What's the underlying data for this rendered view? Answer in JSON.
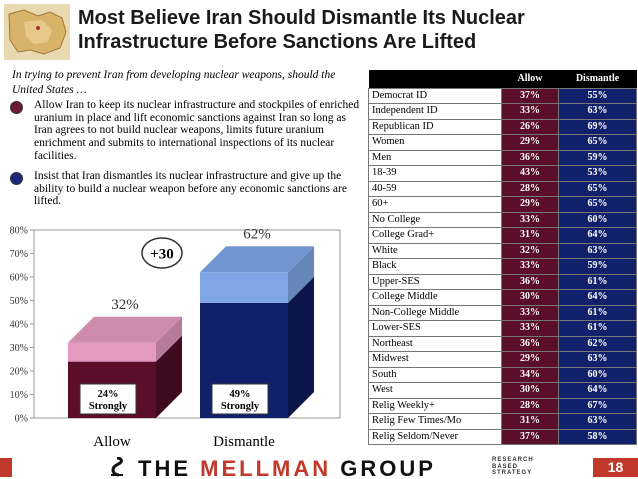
{
  "header": {
    "title_line1": "Most Believe Iran Should Dismantle Its Nuclear",
    "title_line2": "Infrastructure Before Sanctions Are Lifted"
  },
  "question": {
    "intro": "In trying to prevent Iran from developing nuclear weapons, should the United States …",
    "options": [
      {
        "text": "Allow Iran to keep its nuclear infrastructure and stockpiles of enriched uranium in place and lift economic sanctions against Iran so long as Iran agrees to not build nuclear weapons, limits future uranium enrichment and submits to international inspections of its nuclear facilities.",
        "color": "#6a1a35"
      },
      {
        "text": "Insist that Iran dismantles its nuclear infrastructure and give up the ability to build a nuclear weapon before any economic sanctions are lifted.",
        "color": "#1a2a7a"
      }
    ]
  },
  "chart_data": {
    "type": "bar",
    "categories": [
      "Allow",
      "Dismantle"
    ],
    "total_labels": [
      "32%",
      "62%"
    ],
    "totals": [
      32,
      62
    ],
    "strongly": [
      24,
      49
    ],
    "strongly_labels": [
      "24%\nStrongly",
      "49%\nStrongly"
    ],
    "strongly_line1": [
      "24%",
      "49%"
    ],
    "strongly_line2": [
      "Strongly",
      "Strongly"
    ],
    "difference_label": "+30",
    "ylim": [
      0,
      80
    ],
    "yticks": [
      "0%",
      "10%",
      "20%",
      "30%",
      "40%",
      "50%",
      "60%",
      "70%",
      "80%"
    ],
    "colors": {
      "allow_strong": "#5a0e2a",
      "allow_soft": "#e49ac0",
      "dismantle_strong": "#11206b",
      "dismantle_soft": "#7fa6e6"
    }
  },
  "table": {
    "headers": [
      "",
      "Allow",
      "Dismantle"
    ],
    "rows": [
      {
        "label": "Democrat ID",
        "allow": "37%",
        "dismantle": "55%"
      },
      {
        "label": "Independent ID",
        "allow": "33%",
        "dismantle": "63%"
      },
      {
        "label": "Republican ID",
        "allow": "26%",
        "dismantle": "69%"
      },
      {
        "label": "Women",
        "allow": "29%",
        "dismantle": "65%"
      },
      {
        "label": "Men",
        "allow": "36%",
        "dismantle": "59%"
      },
      {
        "label": "18-39",
        "allow": "43%",
        "dismantle": "53%"
      },
      {
        "label": "40-59",
        "allow": "28%",
        "dismantle": "65%"
      },
      {
        "label": "60+",
        "allow": "29%",
        "dismantle": "65%"
      },
      {
        "label": "No College",
        "allow": "33%",
        "dismantle": "60%"
      },
      {
        "label": "College Grad+",
        "allow": "31%",
        "dismantle": "64%"
      },
      {
        "label": "White",
        "allow": "32%",
        "dismantle": "63%"
      },
      {
        "label": "Black",
        "allow": "33%",
        "dismantle": "59%"
      },
      {
        "label": "Upper-SES",
        "allow": "36%",
        "dismantle": "61%"
      },
      {
        "label": "College Middle",
        "allow": "30%",
        "dismantle": "64%"
      },
      {
        "label": "Non-College Middle",
        "allow": "33%",
        "dismantle": "61%"
      },
      {
        "label": "Lower-SES",
        "allow": "33%",
        "dismantle": "61%"
      },
      {
        "label": "Northeast",
        "allow": "36%",
        "dismantle": "62%"
      },
      {
        "label": "Midwest",
        "allow": "29%",
        "dismantle": "63%"
      },
      {
        "label": "South",
        "allow": "34%",
        "dismantle": "60%"
      },
      {
        "label": "West",
        "allow": "30%",
        "dismantle": "64%"
      },
      {
        "label": "Relig Weekly+",
        "allow": "28%",
        "dismantle": "67%"
      },
      {
        "label": "Relig Few Times/Mo",
        "allow": "31%",
        "dismantle": "63%"
      },
      {
        "label": "Relig Seldom/Never",
        "allow": "37%",
        "dismantle": "58%"
      }
    ]
  },
  "footer": {
    "firm_the": "THE",
    "firm_mellman": "MELLMAN",
    "firm_group": "GROUP",
    "tagline": [
      "RESEARCH",
      "BASED",
      "STRATEGY"
    ],
    "page_number": "18"
  }
}
